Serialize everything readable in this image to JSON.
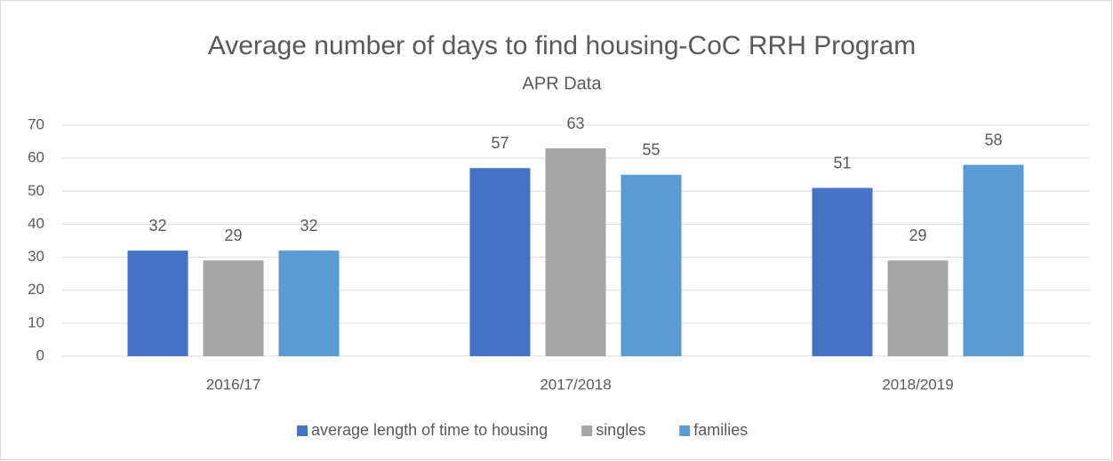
{
  "chart_data": {
    "type": "bar",
    "title": "Average number of days to find housing-CoC RRH Program",
    "subtitle": "APR Data",
    "categories": [
      "2016/17",
      "2017/2018",
      "2018/2019"
    ],
    "series": [
      {
        "name": "average length of time to housing",
        "color": "#4472c4",
        "values": [
          32,
          57,
          51
        ]
      },
      {
        "name": "singles",
        "color": "#a5a5a5",
        "values": [
          29,
          63,
          29
        ]
      },
      {
        "name": "families",
        "color": "#5b9bd5",
        "values": [
          32,
          55,
          58
        ]
      }
    ],
    "ylim": [
      0,
      70
    ],
    "yticks": [
      0,
      10,
      20,
      30,
      40,
      50,
      60,
      70
    ],
    "grid": true,
    "legend": "bottom"
  }
}
